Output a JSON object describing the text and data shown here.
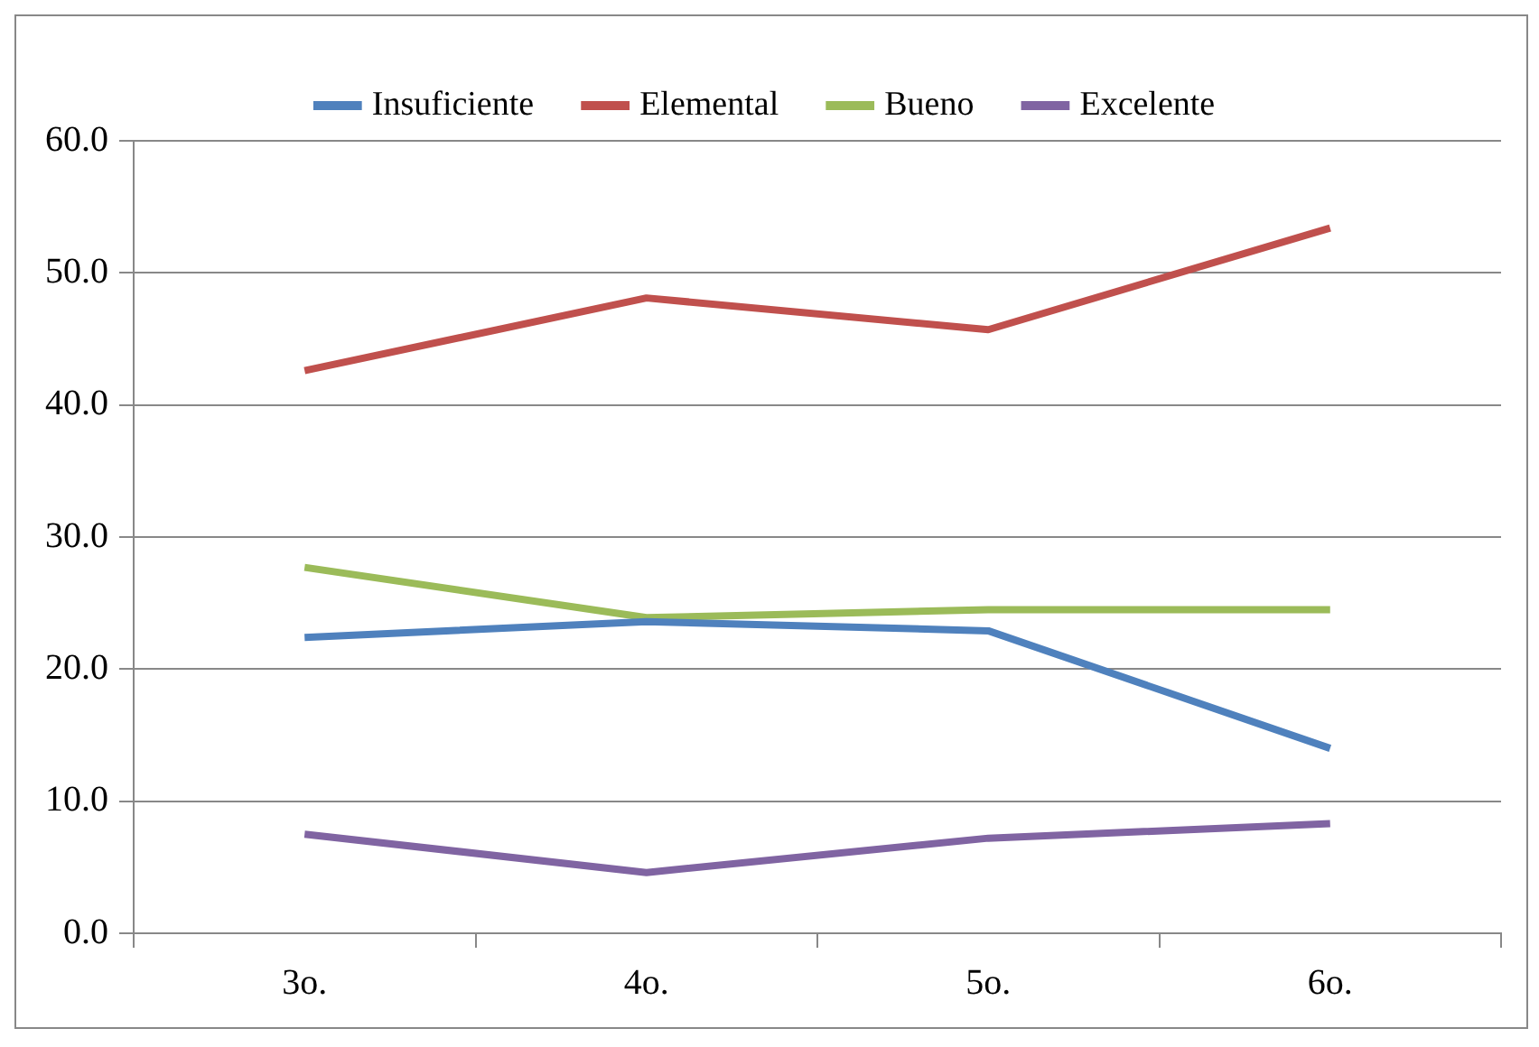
{
  "chart_data": {
    "type": "line",
    "categories": [
      "3o.",
      "4o.",
      "5o.",
      "6o."
    ],
    "series": [
      {
        "name": "Insuficiente",
        "color": "#4f81bd",
        "values": [
          22.4,
          23.6,
          22.9,
          14.0
        ]
      },
      {
        "name": "Elemental",
        "color": "#c0504d",
        "values": [
          42.6,
          48.1,
          45.7,
          53.4
        ]
      },
      {
        "name": "Bueno",
        "color": "#9bbb59",
        "values": [
          27.7,
          23.9,
          24.5,
          24.5
        ]
      },
      {
        "name": "Excelente",
        "color": "#8064a2",
        "values": [
          7.5,
          4.6,
          7.2,
          8.3
        ]
      }
    ],
    "ylim": [
      0,
      60
    ],
    "yticks": [
      {
        "value": 0,
        "label": "0.0"
      },
      {
        "value": 10,
        "label": "10.0"
      },
      {
        "value": 20,
        "label": "20.0"
      },
      {
        "value": 30,
        "label": "30.0"
      },
      {
        "value": 40,
        "label": "40.0"
      },
      {
        "value": 50,
        "label": "50.0"
      },
      {
        "value": 60,
        "label": "60.0"
      }
    ],
    "grid": "y",
    "legend": "top",
    "marker": "none",
    "line_style": "solid"
  }
}
